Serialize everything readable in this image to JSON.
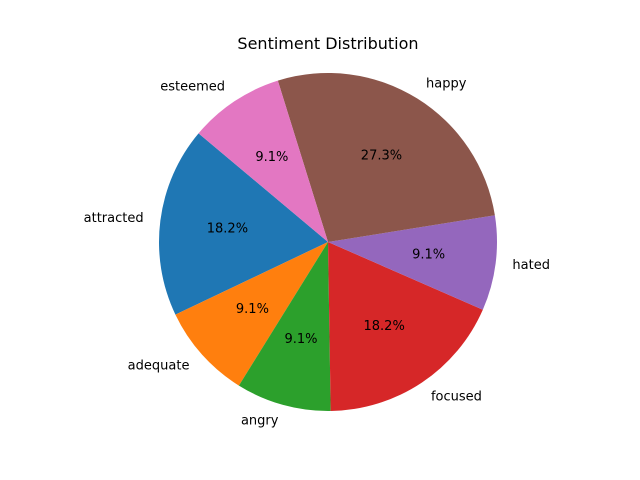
{
  "chart_data": {
    "type": "pie",
    "title": "Sentiment Distribution",
    "start_angle_deg": 140,
    "direction": "counterclockwise",
    "slices": [
      {
        "label": "attracted",
        "value": 2,
        "percent_label": "18.2%",
        "color": "#1f77b4"
      },
      {
        "label": "adequate",
        "value": 1,
        "percent_label": "9.1%",
        "color": "#ff7f0e"
      },
      {
        "label": "angry",
        "value": 1,
        "percent_label": "9.1%",
        "color": "#2ca02c"
      },
      {
        "label": "focused",
        "value": 2,
        "percent_label": "18.2%",
        "color": "#d62728"
      },
      {
        "label": "hated",
        "value": 1,
        "percent_label": "9.1%",
        "color": "#9467bd"
      },
      {
        "label": "happy",
        "value": 3,
        "percent_label": "27.3%",
        "color": "#8c564b"
      },
      {
        "label": "esteemed",
        "value": 1,
        "percent_label": "9.1%",
        "color": "#e377c2"
      }
    ]
  }
}
